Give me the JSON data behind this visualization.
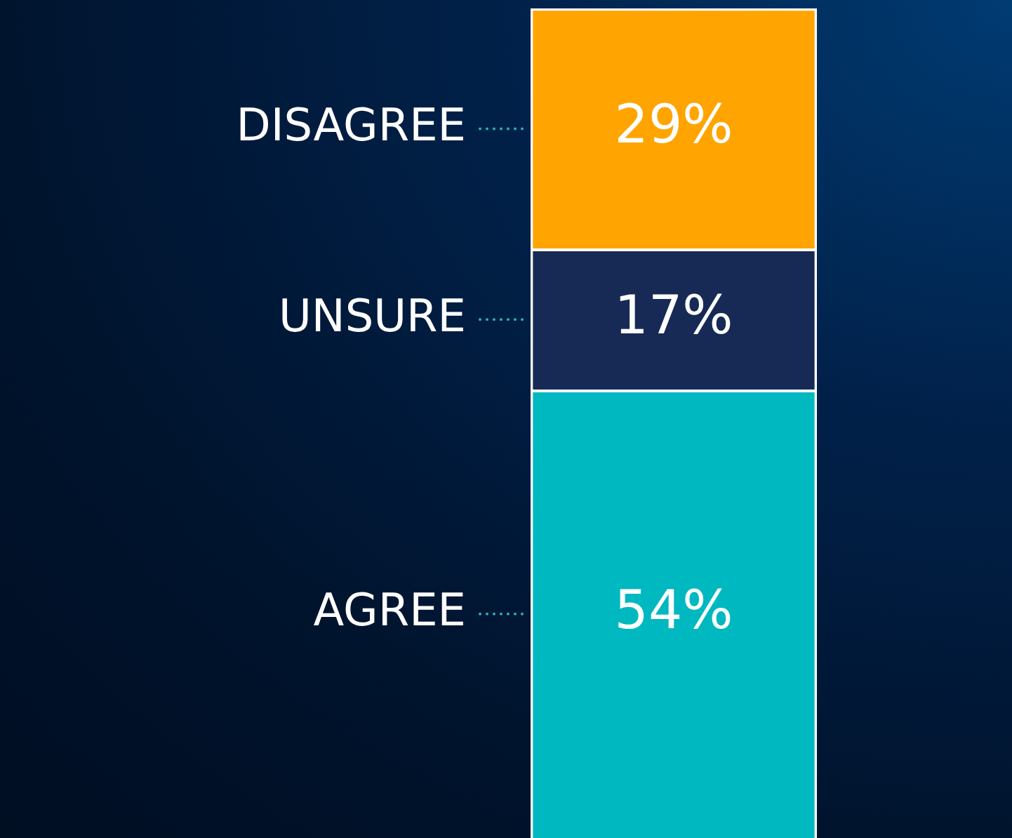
{
  "chart_data": {
    "type": "bar",
    "stacked": true,
    "categories": [
      null
    ],
    "ylim": [
      0,
      100
    ],
    "legend": false,
    "series": [
      {
        "name": "AGREE",
        "color": "#00b8c0",
        "values": [
          54
        ],
        "value_labels": [
          "54%"
        ]
      },
      {
        "name": "UNSURE",
        "color": "#172a55",
        "values": [
          17
        ],
        "value_labels": [
          "17%"
        ]
      },
      {
        "name": "DISAGREE",
        "color": "#ffa400",
        "values": [
          29
        ],
        "value_labels": [
          "29%"
        ]
      }
    ]
  }
}
